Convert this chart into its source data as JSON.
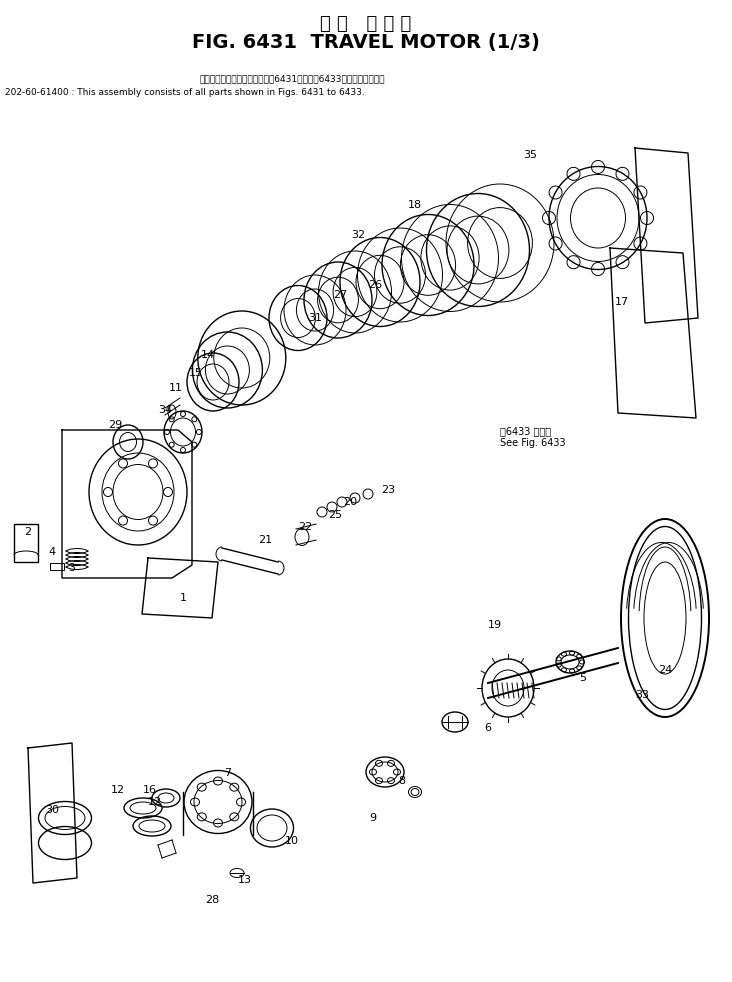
{
  "title_japanese": "走 行   モ ー タ",
  "title_english": "FIG. 6431  TRAVEL MOTOR (1/3)",
  "part_number_label": "202-60-61400 : This assembly consists of all parts shown in Figs. 6431 to 6433.",
  "japanese_note": "このアセンブリの構成部品は第6431図から第6433図まで含みます。",
  "see_fig_label": "第6433 図参照\nSee Fig. 6433",
  "bg_color": "#ffffff",
  "line_color": "#000000",
  "title_fontsize": 14,
  "note_fontsize": 7.5,
  "label_fontsize": 8
}
